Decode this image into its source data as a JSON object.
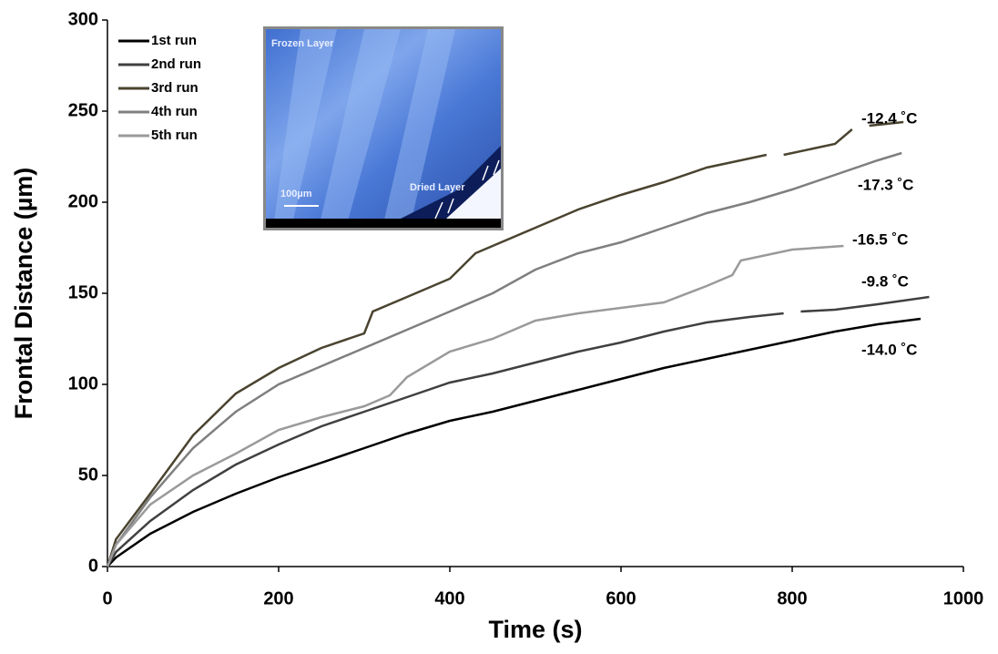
{
  "chart_data": {
    "type": "line",
    "xlabel": "Time (s)",
    "ylabel": "Frontal Distance (µm)",
    "xlim": [
      0,
      1000
    ],
    "xticks": [
      0,
      200,
      400,
      600,
      800,
      1000
    ],
    "ylim": [
      0,
      300
    ],
    "yticks": [
      0,
      50,
      100,
      150,
      200,
      250,
      300
    ],
    "grid": false,
    "legend": "upper left",
    "series": [
      {
        "name": "1st run",
        "color": "#000000",
        "x": [
          0,
          10,
          50,
          100,
          150,
          200,
          250,
          300,
          350,
          400,
          450,
          500,
          550,
          600,
          650,
          700,
          750,
          800,
          850,
          900,
          950
        ],
        "values": [
          0,
          5,
          18,
          30,
          40,
          49,
          57,
          65,
          73,
          80,
          85,
          91,
          97,
          103,
          109,
          114,
          119,
          124,
          129,
          133,
          136
        ]
      },
      {
        "name": "2nd run",
        "color": "#404040",
        "x": [
          0,
          10,
          50,
          100,
          150,
          200,
          250,
          300,
          350,
          400,
          450,
          500,
          550,
          600,
          650,
          700,
          750,
          790,
          800,
          810,
          850,
          900,
          960
        ],
        "values": [
          0,
          8,
          25,
          42,
          56,
          67,
          77,
          85,
          93,
          101,
          106,
          112,
          118,
          123,
          129,
          134,
          137,
          139,
          null,
          140,
          141,
          144,
          148
        ]
      },
      {
        "name": "3rd run",
        "color": "#4a4430",
        "x": [
          0,
          10,
          50,
          100,
          150,
          200,
          250,
          300,
          310,
          350,
          400,
          430,
          450,
          500,
          550,
          600,
          650,
          700,
          750,
          770,
          780,
          790,
          850,
          870,
          880,
          890,
          930
        ],
        "values": [
          0,
          15,
          40,
          72,
          95,
          109,
          120,
          128,
          140,
          148,
          158,
          172,
          176,
          186,
          196,
          204,
          211,
          219,
          224,
          226,
          null,
          226,
          232,
          240,
          null,
          242,
          244
        ]
      },
      {
        "name": "4th run",
        "color": "#7f7f7f",
        "x": [
          0,
          10,
          50,
          100,
          150,
          200,
          250,
          300,
          350,
          400,
          450,
          500,
          550,
          600,
          650,
          700,
          750,
          800,
          850,
          900,
          928
        ],
        "values": [
          0,
          12,
          38,
          65,
          85,
          100,
          110,
          120,
          130,
          140,
          150,
          163,
          172,
          178,
          186,
          194,
          200,
          207,
          215,
          223,
          227
        ]
      },
      {
        "name": "5th run",
        "color": "#9a9a9a",
        "x": [
          0,
          10,
          50,
          100,
          150,
          200,
          250,
          300,
          330,
          350,
          400,
          450,
          500,
          550,
          600,
          650,
          700,
          730,
          740,
          800,
          860
        ],
        "values": [
          0,
          12,
          34,
          50,
          62,
          75,
          82,
          88,
          94,
          104,
          118,
          125,
          135,
          139,
          142,
          145,
          154,
          160,
          168,
          174,
          176
        ]
      }
    ],
    "annotations": [
      "-12.4 ˚C",
      "-17.3 ˚C",
      "-16.5 ˚C",
      "-9.8 ˚C",
      "-14.0 ˚C"
    ],
    "inset": {
      "top_label": "Frozen Layer",
      "scale_label": "100µm",
      "bottom_label": "Dried Layer"
    }
  }
}
